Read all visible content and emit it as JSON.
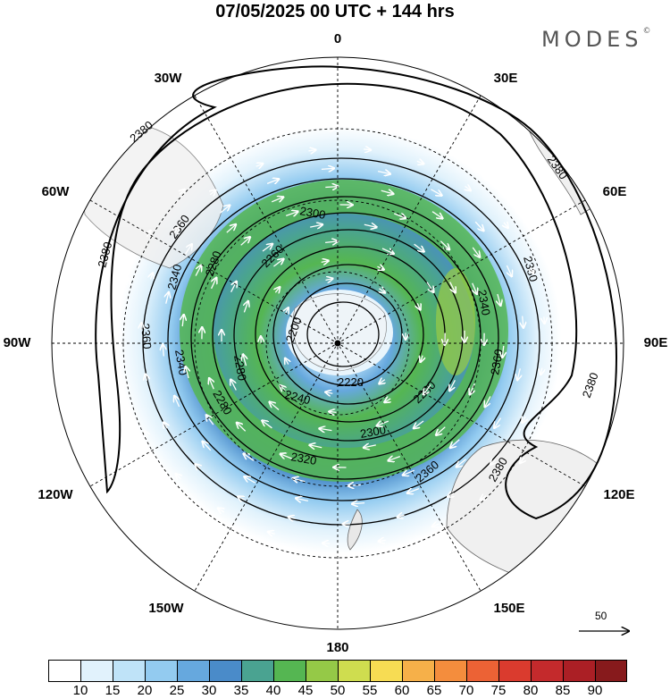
{
  "title": "07/05/2025  00 UTC  + 144 hrs",
  "brand": "MODES",
  "brand_mark": "©",
  "longitude_labels": {
    "top": "0",
    "top_right": "30E",
    "upper_right": "60E",
    "right": "90E",
    "lower_right": "120E",
    "bottom_right": "150E",
    "bottom": "180",
    "bottom_left": "150W",
    "lower_left": "120W",
    "left": "90W",
    "upper_left": "60W",
    "top_left": "30W"
  },
  "reference_vector": {
    "label": "50",
    "icon": "arrow-right-icon"
  },
  "contours": {
    "labels": [
      "2380",
      "2360",
      "2340",
      "2320",
      "2300",
      "2280",
      "2260",
      "2240",
      "2220",
      "2200"
    ]
  },
  "colorbar": {
    "ticks": [
      "10",
      "15",
      "20",
      "25",
      "30",
      "35",
      "40",
      "45",
      "50",
      "55",
      "60",
      "65",
      "70",
      "75",
      "80",
      "85",
      "90"
    ],
    "colors": [
      "#ffffff",
      "#e1f2fc",
      "#bfe3f8",
      "#93cbf0",
      "#66a8de",
      "#4a8bc9",
      "#4aa391",
      "#55b652",
      "#95c947",
      "#cfdd4f",
      "#f7dc53",
      "#f6b049",
      "#f48d3d",
      "#ec6235",
      "#da3b2e",
      "#c42a2c",
      "#ab1f25",
      "#871a1c"
    ]
  }
}
